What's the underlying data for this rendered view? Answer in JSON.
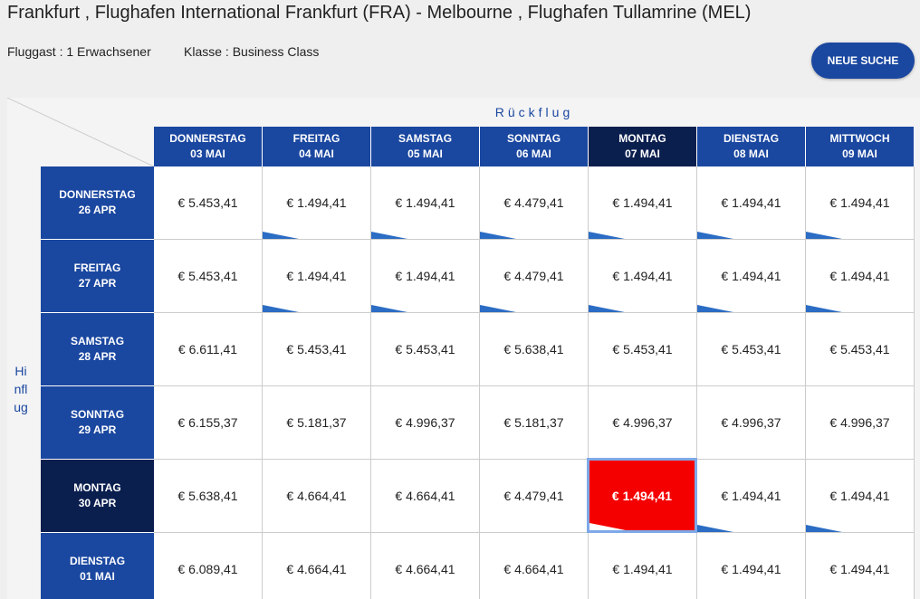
{
  "header": {
    "title": "Frankfurt , Flughafen International Frankfurt (FRA) - Melbourne , Flughafen Tullamrine (MEL)",
    "passengers": "Fluggast : 1 Erwachsener",
    "class": "Klasse : Business Class",
    "button": "NEUE SUCHE"
  },
  "grid": {
    "return_label": "Rückflug",
    "outbound_label": "Hinflug",
    "columns": [
      {
        "day": "DONNERSTAG",
        "date": "03 MAI"
      },
      {
        "day": "FREITAG",
        "date": "04 MAI"
      },
      {
        "day": "SAMSTAG",
        "date": "05 MAI"
      },
      {
        "day": "SONNTAG",
        "date": "06 MAI"
      },
      {
        "day": "MONTAG",
        "date": "07 MAI"
      },
      {
        "day": "DIENSTAG",
        "date": "08 MAI"
      },
      {
        "day": "MITTWOCH",
        "date": "09 MAI"
      }
    ],
    "rows": [
      {
        "day": "DONNERSTAG",
        "date": "26 APR",
        "prices": [
          "€ 5.453,41",
          "€ 1.494,41",
          "€ 1.494,41",
          "€ 4.479,41",
          "€ 1.494,41",
          "€ 1.494,41",
          "€ 1.494,41"
        ]
      },
      {
        "day": "FREITAG",
        "date": "27 APR",
        "prices": [
          "€ 5.453,41",
          "€ 1.494,41",
          "€ 1.494,41",
          "€ 4.479,41",
          "€ 1.494,41",
          "€ 1.494,41",
          "€ 1.494,41"
        ]
      },
      {
        "day": "SAMSTAG",
        "date": "28 APR",
        "prices": [
          "€ 6.611,41",
          "€ 5.453,41",
          "€ 5.453,41",
          "€ 5.638,41",
          "€ 5.453,41",
          "€ 5.453,41",
          "€ 5.453,41"
        ]
      },
      {
        "day": "SONNTAG",
        "date": "29 APR",
        "prices": [
          "€ 6.155,37",
          "€ 5.181,37",
          "€ 4.996,37",
          "€ 5.181,37",
          "€ 4.996,37",
          "€ 4.996,37",
          "€ 4.996,37"
        ]
      },
      {
        "day": "MONTAG",
        "date": "30 APR",
        "prices": [
          "€ 5.638,41",
          "€ 4.664,41",
          "€ 4.664,41",
          "€ 4.479,41",
          "€ 1.494,41",
          "€ 1.494,41",
          "€ 1.494,41"
        ]
      },
      {
        "day": "DIENSTAG",
        "date": "01 MAI",
        "prices": [
          "€ 6.089,41",
          "€ 4.664,41",
          "€ 4.664,41",
          "€ 4.664,41",
          "€ 1.494,41",
          "€ 1.494,41",
          "€ 1.494,41"
        ]
      }
    ]
  }
}
